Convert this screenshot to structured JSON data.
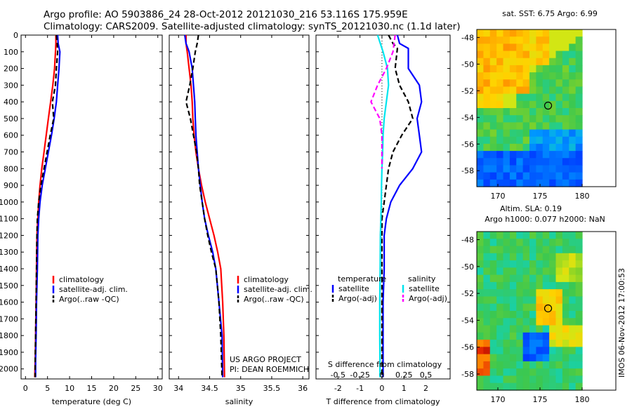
{
  "header": {
    "line1": "Argo profile: AO 5903886_24 28-Oct-2012 20121030_216 53.116S 175.959E",
    "line2": "Climatology: CARS2009. Satellite-adjusted climatology: synTS_20121030.nc (1.1d later)"
  },
  "chart_data": [
    {
      "type": "line",
      "panel": "temperature",
      "xlabel": "temperature (deg C)",
      "xlim": [
        -1,
        31
      ],
      "xticks": [
        0,
        5,
        10,
        15,
        20,
        25,
        30
      ],
      "ylim": [
        2060,
        0
      ],
      "yticks": [
        0,
        100,
        200,
        300,
        400,
        500,
        600,
        700,
        800,
        900,
        1000,
        1100,
        1200,
        1300,
        1400,
        1500,
        1600,
        1700,
        1800,
        1900,
        2000
      ],
      "legend": [
        "climatology",
        "satellite-adj. clim.",
        "Argo(..raw -QC)"
      ],
      "series": [
        {
          "name": "climatology",
          "color": "#ff0000",
          "style": "solid",
          "x": [
            6.9,
            6.9,
            6.8,
            6.6,
            6.2,
            5.7,
            5.2,
            4.7,
            4.2,
            3.7,
            3.3,
            3.0,
            2.8,
            2.6,
            2.5,
            2.4,
            2.3,
            2.2,
            2.1
          ],
          "y": [
            0,
            50,
            100,
            200,
            300,
            400,
            500,
            600,
            700,
            800,
            900,
            1000,
            1100,
            1200,
            1400,
            1600,
            1800,
            1950,
            2050
          ]
        },
        {
          "name": "satellite-adj. clim.",
          "color": "#0000ff",
          "style": "solid",
          "x": [
            7.3,
            7.4,
            7.8,
            7.6,
            7.3,
            7.0,
            6.5,
            5.9,
            5.2,
            4.5,
            3.8,
            3.3,
            3.0,
            2.8,
            2.7,
            2.5,
            2.4,
            2.3,
            2.3
          ],
          "y": [
            0,
            50,
            100,
            200,
            300,
            400,
            500,
            600,
            700,
            800,
            900,
            1000,
            1100,
            1200,
            1400,
            1600,
            1800,
            1950,
            2050
          ]
        },
        {
          "name": "Argo(..raw -QC)",
          "color": "#000000",
          "style": "dashed",
          "x": [
            7.0,
            7.2,
            7.3,
            7.0,
            6.8,
            6.1,
            6.4,
            5.6,
            4.9,
            4.2,
            3.5,
            3.0,
            2.7,
            2.6,
            2.5,
            2.4,
            2.3,
            2.2,
            2.2
          ],
          "y": [
            0,
            50,
            100,
            200,
            300,
            400,
            500,
            600,
            700,
            800,
            900,
            1000,
            1100,
            1200,
            1400,
            1600,
            1800,
            1950,
            2050
          ]
        }
      ]
    },
    {
      "type": "line",
      "panel": "salinity",
      "xlabel": "salinity",
      "xlim": [
        33.85,
        36.1
      ],
      "xticks": [
        34,
        34.5,
        35,
        35.5,
        36
      ],
      "ylim": [
        2060,
        0
      ],
      "legend": [
        "climatology",
        "satellite-adj. clim.",
        "Argo(..raw -QC)"
      ],
      "annotation": [
        "US ARGO PROJECT",
        "PI: DEAN ROEMMICH"
      ],
      "series": [
        {
          "name": "climatology",
          "color": "#ff0000",
          "style": "solid",
          "x": [
            34.12,
            34.12,
            34.14,
            34.17,
            34.2,
            34.22,
            34.23,
            34.25,
            34.28,
            34.32,
            34.37,
            34.43,
            34.5,
            34.57,
            34.63,
            34.68,
            34.71,
            34.73,
            34.74
          ],
          "y": [
            0,
            50,
            100,
            200,
            300,
            400,
            500,
            600,
            700,
            800,
            900,
            1000,
            1100,
            1200,
            1300,
            1400,
            1600,
            1800,
            2050
          ]
        },
        {
          "name": "satellite-adj. clim.",
          "color": "#0000ff",
          "style": "solid",
          "x": [
            34.1,
            34.12,
            34.17,
            34.22,
            34.24,
            34.26,
            34.27,
            34.28,
            34.3,
            34.32,
            34.35,
            34.38,
            34.42,
            34.48,
            34.55,
            34.6,
            34.65,
            34.7,
            34.71
          ],
          "y": [
            0,
            50,
            100,
            200,
            300,
            400,
            500,
            600,
            700,
            800,
            900,
            1000,
            1100,
            1200,
            1300,
            1400,
            1600,
            1800,
            2050
          ]
        },
        {
          "name": "Argo(..raw -QC)",
          "color": "#000000",
          "style": "dashed",
          "x": [
            34.32,
            34.3,
            34.27,
            34.23,
            34.18,
            34.12,
            34.19,
            34.24,
            34.29,
            34.32,
            34.34,
            34.38,
            34.42,
            34.47,
            34.53,
            34.6,
            34.65,
            34.68,
            34.7
          ],
          "y": [
            0,
            50,
            100,
            200,
            300,
            400,
            500,
            600,
            700,
            800,
            900,
            1000,
            1100,
            1200,
            1300,
            1400,
            1600,
            1800,
            2050
          ]
        }
      ]
    },
    {
      "type": "line",
      "panel": "differences",
      "xlabel": "T difference from climatology",
      "xlim": [
        -3,
        3.1
      ],
      "xticks": [
        -2,
        -1,
        0,
        1,
        2
      ],
      "top_axis_label": "S difference from climatology",
      "top_xticks": [
        "-0.5",
        "-0.25",
        "0",
        "0.25",
        "0.5"
      ],
      "ylim": [
        2060,
        0
      ],
      "legend_headers": [
        "temperature",
        "salinity"
      ],
      "legend": [
        "satellite",
        "Argo(-adj)",
        "satellite",
        "Argo(-adj)"
      ],
      "series": [
        {
          "name": "satellite",
          "group": "temperature",
          "color": "#0000ff",
          "style": "solid",
          "x": [
            0.7,
            0.8,
            1.2,
            1.2,
            1.7,
            1.8,
            1.6,
            1.7,
            1.8,
            1.4,
            0.8,
            0.4,
            0.2,
            0.1,
            0.1,
            0.05,
            0.05,
            0.05,
            0.05
          ],
          "y": [
            0,
            50,
            80,
            200,
            300,
            400,
            500,
            600,
            700,
            800,
            900,
            1000,
            1100,
            1200,
            1400,
            1600,
            1800,
            1950,
            2050
          ]
        },
        {
          "name": "Argo(-adj)",
          "group": "temperature",
          "color": "#000000",
          "style": "dashed",
          "x": [
            0.3,
            0.5,
            0.7,
            0.6,
            0.8,
            1.2,
            1.4,
            0.9,
            0.5,
            0.3,
            0.2,
            0.1,
            0.0,
            0.0,
            0.0,
            0.0,
            0.0,
            0.0,
            0.0
          ],
          "y": [
            0,
            50,
            80,
            200,
            300,
            400,
            500,
            600,
            700,
            800,
            900,
            1000,
            1100,
            1200,
            1400,
            1600,
            1800,
            1950,
            2050
          ]
        },
        {
          "name": "satellite",
          "group": "salinity",
          "color": "#00e5ee",
          "style": "solid",
          "x": [
            -0.2,
            0.05,
            0.25,
            0.3,
            0.2,
            0.1,
            0.05,
            0.03,
            0.0,
            -0.02,
            -0.03,
            -0.05,
            -0.07,
            -0.08,
            -0.1,
            -0.1,
            -0.09,
            -0.09
          ],
          "y": [
            0,
            100,
            200,
            300,
            400,
            500,
            600,
            700,
            800,
            900,
            1000,
            1100,
            1200,
            1400,
            1600,
            1800,
            1950,
            2050
          ]
        },
        {
          "name": "Argo(-adj)",
          "group": "salinity",
          "color": "#ff00ff",
          "style": "dashed",
          "x": [
            0.6,
            0.5,
            0.2,
            -0.2,
            -0.5,
            -0.1,
            0.0,
            0.0,
            0.0
          ],
          "y": [
            0,
            100,
            200,
            300,
            400,
            500,
            600,
            700,
            800
          ]
        }
      ]
    },
    {
      "type": "heatmap",
      "panel": "sst-map",
      "title": "sat. SST: 6.75 Argo: 6.99",
      "xticks": [
        170,
        175,
        180
      ],
      "yticks": [
        -48,
        -50,
        -52,
        -54,
        -56,
        -58
      ],
      "xlim": [
        167.5,
        184
      ],
      "ylim": [
        -59.2,
        -47.4
      ],
      "marker": {
        "lon": 175.959,
        "lat": -53.116
      }
    },
    {
      "type": "heatmap",
      "panel": "sla-map",
      "title": "Altim. SLA: 0.19",
      "subtitle": "Argo h1000: 0.077 h2000: NaN",
      "xticks": [
        170,
        175,
        180
      ],
      "yticks": [
        -48,
        -50,
        -52,
        -54,
        -56,
        -58
      ],
      "xlim": [
        167.5,
        184
      ],
      "ylim": [
        -59.2,
        -47.4
      ],
      "marker": {
        "lon": 175.959,
        "lat": -53.116
      }
    }
  ],
  "side_label": "IMOS 06-Nov-2012 17:00:53"
}
